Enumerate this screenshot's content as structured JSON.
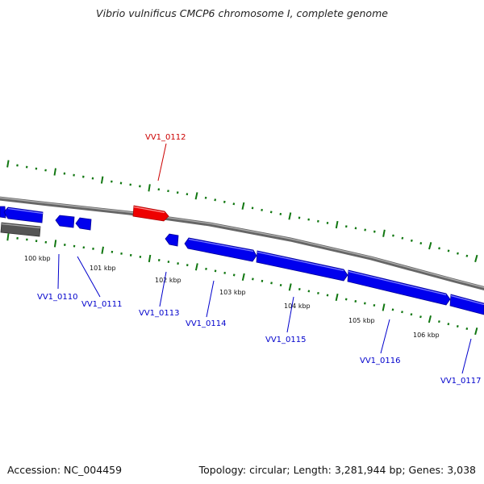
{
  "header": {
    "title": "Vibrio vulnificus CMCP6 chromosome I, complete genome"
  },
  "footer": {
    "accession": "Accession: NC_004459",
    "summary": "Topology: circular; Length: 3,281,944 bp; Genes: 3,038"
  },
  "colors": {
    "gene_fill": "#0000ee",
    "highlight_fill": "#ee0000",
    "pseudo_fill": "#555555",
    "backbone": "#777777",
    "tick": "#117711",
    "label_default": "#0000cc",
    "label_highlight": "#cc0000"
  },
  "ticks": [
    {
      "kbp": 100,
      "label": "100 kbp"
    },
    {
      "kbp": 101,
      "label": "101 kbp"
    },
    {
      "kbp": 102,
      "label": "102 kbp"
    },
    {
      "kbp": 103,
      "label": "103 kbp"
    },
    {
      "kbp": 104,
      "label": "104 kbp"
    },
    {
      "kbp": 105,
      "label": "105 kbp"
    },
    {
      "kbp": 106,
      "label": "106 kbp"
    }
  ],
  "genes": [
    {
      "locus": "VV1_0110",
      "strand": "forward",
      "label_shown": true
    },
    {
      "locus": "VV1_0111",
      "strand": "reverse",
      "label_shown": true
    },
    {
      "locus": "VV1_0112",
      "strand": "forward",
      "label_shown": true,
      "highlighted": true
    },
    {
      "locus": "VV1_0113",
      "strand": "reverse",
      "label_shown": true
    },
    {
      "locus": "VV1_0114",
      "strand": "forward",
      "label_shown": true
    },
    {
      "locus": "VV1_0115",
      "strand": "forward",
      "label_shown": true
    },
    {
      "locus": "VV1_0116",
      "strand": "forward",
      "label_shown": true
    },
    {
      "locus": "VV1_0117",
      "strand": "forward",
      "label_shown": true
    }
  ]
}
